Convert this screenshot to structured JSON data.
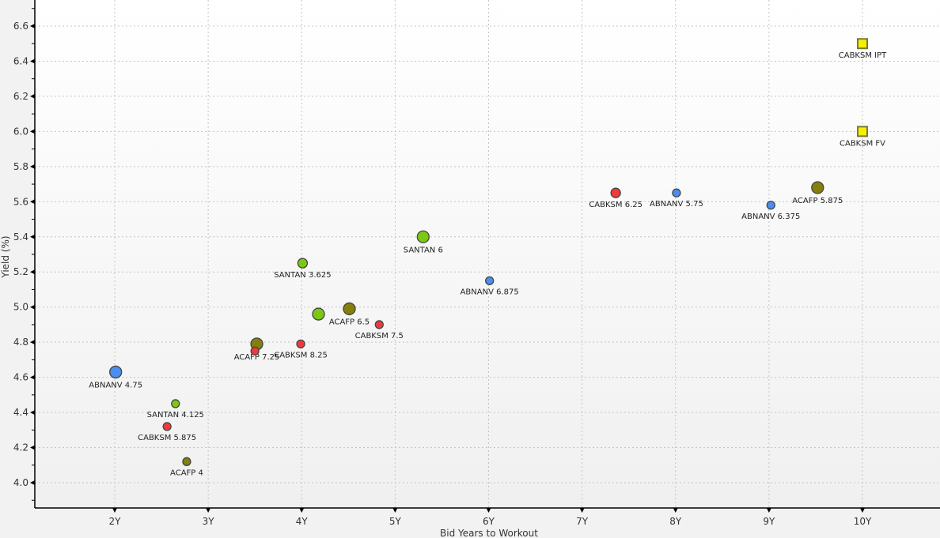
{
  "chart_data": {
    "type": "scatter",
    "title": "",
    "xlabel": "Bid Years to Workout",
    "ylabel": "Yield (%)",
    "xlim": [
      1.15,
      10.85
    ],
    "ylim": [
      3.87,
      6.75
    ],
    "grid": true,
    "x_ticks": [
      2,
      3,
      4,
      5,
      6,
      7,
      8,
      9,
      10
    ],
    "x_tick_labels": [
      "2Y",
      "3Y",
      "4Y",
      "5Y",
      "6Y",
      "7Y",
      "8Y",
      "9Y",
      "10Y"
    ],
    "y_ticks": [
      4.0,
      4.2,
      4.4,
      4.6,
      4.8,
      5.0,
      5.2,
      5.4,
      5.6,
      5.8,
      6.0,
      6.2,
      6.4,
      6.6
    ],
    "y_tick_labels": [
      "4.0",
      "4.2",
      "4.4",
      "4.6",
      "4.8",
      "5.0",
      "5.2",
      "5.4",
      "5.6",
      "5.8",
      "6.0",
      "6.2",
      "6.4",
      "6.6"
    ],
    "colors": {
      "ABNANV": "#4a8ef0",
      "CABKSM": "#f03a3a",
      "SANTAN": "#7cc814",
      "ACAFP": "#857f0c",
      "CABKSM_NEW": "#f5f000"
    },
    "points": [
      {
        "label": "ABNANV 4.75",
        "issuer": "ABNANV",
        "x": 2.01,
        "y": 4.63,
        "size": "large",
        "shape": "circle"
      },
      {
        "label": "SANTAN 4.125",
        "issuer": "SANTAN",
        "x": 2.65,
        "y": 4.45,
        "size": "small",
        "shape": "circle"
      },
      {
        "label": "CABKSM 5.875",
        "issuer": "CABKSM",
        "x": 2.56,
        "y": 4.32,
        "size": "small",
        "shape": "circle"
      },
      {
        "label": "ACAFP 4",
        "issuer": "ACAFP",
        "x": 2.77,
        "y": 4.12,
        "size": "small",
        "shape": "circle"
      },
      {
        "label": "ACAFP 7.25",
        "issuer": "ACAFP",
        "x": 3.52,
        "y": 4.79,
        "size": "large",
        "shape": "circle"
      },
      {
        "label": "",
        "issuer": "CABKSM",
        "x": 3.5,
        "y": 4.75,
        "size": "small",
        "shape": "circle"
      },
      {
        "label": "CABKSM 8.25",
        "issuer": "CABKSM",
        "x": 3.99,
        "y": 4.79,
        "size": "small",
        "shape": "circle"
      },
      {
        "label": "SANTAN 3.625",
        "issuer": "SANTAN",
        "x": 4.01,
        "y": 5.25,
        "size": "medium",
        "shape": "circle"
      },
      {
        "label": "",
        "issuer": "SANTAN",
        "x": 4.18,
        "y": 4.96,
        "size": "large",
        "shape": "circle"
      },
      {
        "label": "ACAFP 6.5",
        "issuer": "ACAFP",
        "x": 4.51,
        "y": 4.99,
        "size": "large",
        "shape": "circle"
      },
      {
        "label": "CABKSM 7.5",
        "issuer": "CABKSM",
        "x": 4.83,
        "y": 4.9,
        "size": "small",
        "shape": "circle"
      },
      {
        "label": "SANTAN 6",
        "issuer": "SANTAN",
        "x": 5.3,
        "y": 5.4,
        "size": "large",
        "shape": "circle"
      },
      {
        "label": "ABNANV 6.875",
        "issuer": "ABNANV",
        "x": 6.01,
        "y": 5.15,
        "size": "small",
        "shape": "circle"
      },
      {
        "label": "CABKSM 6.25",
        "issuer": "CABKSM",
        "x": 7.36,
        "y": 5.65,
        "size": "medium",
        "shape": "circle"
      },
      {
        "label": "ABNANV 5.75",
        "issuer": "ABNANV",
        "x": 8.01,
        "y": 5.65,
        "size": "small",
        "shape": "circle"
      },
      {
        "label": "ABNANV 6.375",
        "issuer": "ABNANV",
        "x": 9.02,
        "y": 5.58,
        "size": "small",
        "shape": "circle"
      },
      {
        "label": "ACAFP 5.875",
        "issuer": "ACAFP",
        "x": 9.52,
        "y": 5.68,
        "size": "large",
        "shape": "circle"
      },
      {
        "label": "CABKSM IPT",
        "issuer": "CABKSM_NEW",
        "x": 10.0,
        "y": 6.5,
        "size": "medium",
        "shape": "square"
      },
      {
        "label": "CABKSM FV",
        "issuer": "CABKSM_NEW",
        "x": 10.0,
        "y": 6.0,
        "size": "medium",
        "shape": "square"
      }
    ]
  }
}
